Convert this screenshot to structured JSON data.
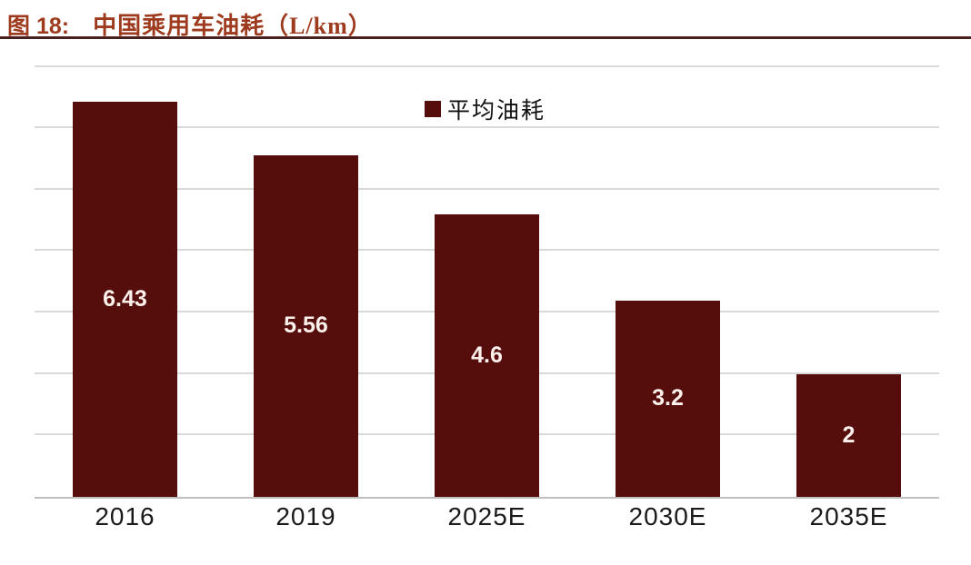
{
  "figure": {
    "label": "图 18:",
    "title": "中国乘用车油耗（L/km）"
  },
  "legend": {
    "label": "平均油耗"
  },
  "colors": {
    "bar": "#550E0C",
    "title": "#9E3A1E",
    "rule": "#4A1F1C",
    "gridline": "#D9D9D9",
    "axis": "#BFBFBF",
    "value_label": "#FBF0EC",
    "tick_label": "#1A1A1A"
  },
  "chart_data": {
    "type": "bar",
    "title": "中国乘用车油耗（L/km）",
    "series_name": "平均油耗",
    "categories": [
      "2016",
      "2019",
      "2025E",
      "2030E",
      "2035E"
    ],
    "values": [
      6.43,
      5.56,
      4.6,
      3.2,
      2
    ],
    "value_labels": [
      "6.43",
      "5.56",
      "4.6",
      "3.2",
      "2"
    ],
    "xlabel": "",
    "ylabel": "",
    "ylim": [
      0,
      7.2
    ],
    "gridline_values": [
      1,
      2,
      3,
      4,
      5,
      6,
      7
    ],
    "grid": true,
    "y_tick_labels_visible": false,
    "legend_position": "top-center",
    "value_label_position": "center-of-bar"
  }
}
